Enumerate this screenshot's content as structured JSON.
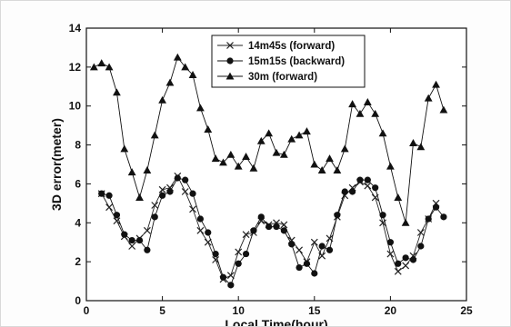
{
  "chart_data": {
    "type": "line",
    "title": "",
    "xlabel": "Local Time(hour)",
    "ylabel": "3D error(meter)",
    "xlim": [
      0,
      25
    ],
    "ylim": [
      0,
      14
    ],
    "xticks": [
      0,
      5,
      10,
      15,
      20,
      25
    ],
    "yticks": [
      0,
      2,
      4,
      6,
      8,
      10,
      12,
      14
    ],
    "grid": false,
    "legend_position": "top-center",
    "series": [
      {
        "name": "14m45s (forward)",
        "marker": "x",
        "color": "#222222",
        "x": [
          1.0,
          1.5,
          2.0,
          2.5,
          3.0,
          3.5,
          4.0,
          4.5,
          5.0,
          5.5,
          6.0,
          6.5,
          7.0,
          7.5,
          8.0,
          8.5,
          9.0,
          9.5,
          10.0,
          10.5,
          11.0,
          11.5,
          12.0,
          12.5,
          13.0,
          13.5,
          14.0,
          14.5,
          15.0,
          15.5,
          16.0,
          16.5,
          17.0,
          17.5,
          18.0,
          18.5,
          19.0,
          19.5,
          20.0,
          20.5,
          21.0,
          21.5,
          22.0,
          22.5,
          23.0
        ],
        "y": [
          5.5,
          4.8,
          4.1,
          3.3,
          2.8,
          3.2,
          3.6,
          4.9,
          5.7,
          5.8,
          6.4,
          5.6,
          4.7,
          3.6,
          3.0,
          2.1,
          1.1,
          1.3,
          2.5,
          3.4,
          3.5,
          4.1,
          3.9,
          4.0,
          3.9,
          3.1,
          2.6,
          2.0,
          3.0,
          2.3,
          3.2,
          4.3,
          5.4,
          5.8,
          6.1,
          5.9,
          5.3,
          4.0,
          2.4,
          1.5,
          1.8,
          2.3,
          3.5,
          4.2,
          5.0
        ]
      },
      {
        "name": "15m15s (backward)",
        "marker": "o",
        "color": "#111111",
        "x": [
          1.0,
          1.5,
          2.0,
          2.5,
          3.0,
          3.5,
          4.0,
          4.5,
          5.0,
          5.5,
          6.0,
          6.5,
          7.0,
          7.5,
          8.0,
          8.5,
          9.0,
          9.5,
          10.0,
          10.5,
          11.0,
          11.5,
          12.0,
          12.5,
          13.0,
          13.5,
          14.0,
          14.5,
          15.0,
          15.5,
          16.0,
          16.5,
          17.0,
          17.5,
          18.0,
          18.5,
          19.0,
          19.5,
          20.0,
          20.5,
          21.0,
          21.5,
          22.0,
          22.5,
          23.0,
          23.5
        ],
        "y": [
          5.5,
          5.4,
          4.4,
          3.4,
          3.1,
          3.1,
          2.6,
          4.3,
          5.4,
          5.6,
          6.3,
          6.2,
          5.5,
          4.2,
          3.5,
          2.4,
          1.2,
          0.8,
          1.9,
          2.4,
          3.6,
          4.3,
          3.8,
          3.8,
          3.6,
          2.9,
          1.7,
          1.9,
          1.4,
          2.8,
          2.6,
          4.4,
          5.6,
          5.6,
          6.2,
          6.2,
          5.8,
          4.4,
          3.0,
          1.9,
          2.2,
          2.1,
          2.8,
          4.2,
          4.8,
          4.3
        ]
      },
      {
        "name": "30m (forward)",
        "marker": "^",
        "color": "#111111",
        "x": [
          0.5,
          1.0,
          1.5,
          2.0,
          2.5,
          3.0,
          3.5,
          4.0,
          4.5,
          5.0,
          5.5,
          6.0,
          6.5,
          7.0,
          7.5,
          8.0,
          8.5,
          9.0,
          9.5,
          10.0,
          10.5,
          11.0,
          11.5,
          12.0,
          12.5,
          13.0,
          13.5,
          14.0,
          14.5,
          15.0,
          15.5,
          16.0,
          16.5,
          17.0,
          17.5,
          18.0,
          18.5,
          19.0,
          19.5,
          20.0,
          20.5,
          21.0,
          21.5,
          22.0,
          22.5,
          23.0,
          23.5
        ],
        "y": [
          12.0,
          12.2,
          12.0,
          10.7,
          7.8,
          6.6,
          5.3,
          6.7,
          8.5,
          10.3,
          11.2,
          12.5,
          12.0,
          11.6,
          9.9,
          8.8,
          7.3,
          7.1,
          7.5,
          6.9,
          7.4,
          6.8,
          8.2,
          8.6,
          7.6,
          7.5,
          8.3,
          8.5,
          8.7,
          7.0,
          6.7,
          7.3,
          6.7,
          7.8,
          10.1,
          9.6,
          10.2,
          9.6,
          8.6,
          6.9,
          5.3,
          4.0,
          8.1,
          7.9,
          10.4,
          11.1,
          9.8
        ]
      }
    ]
  }
}
